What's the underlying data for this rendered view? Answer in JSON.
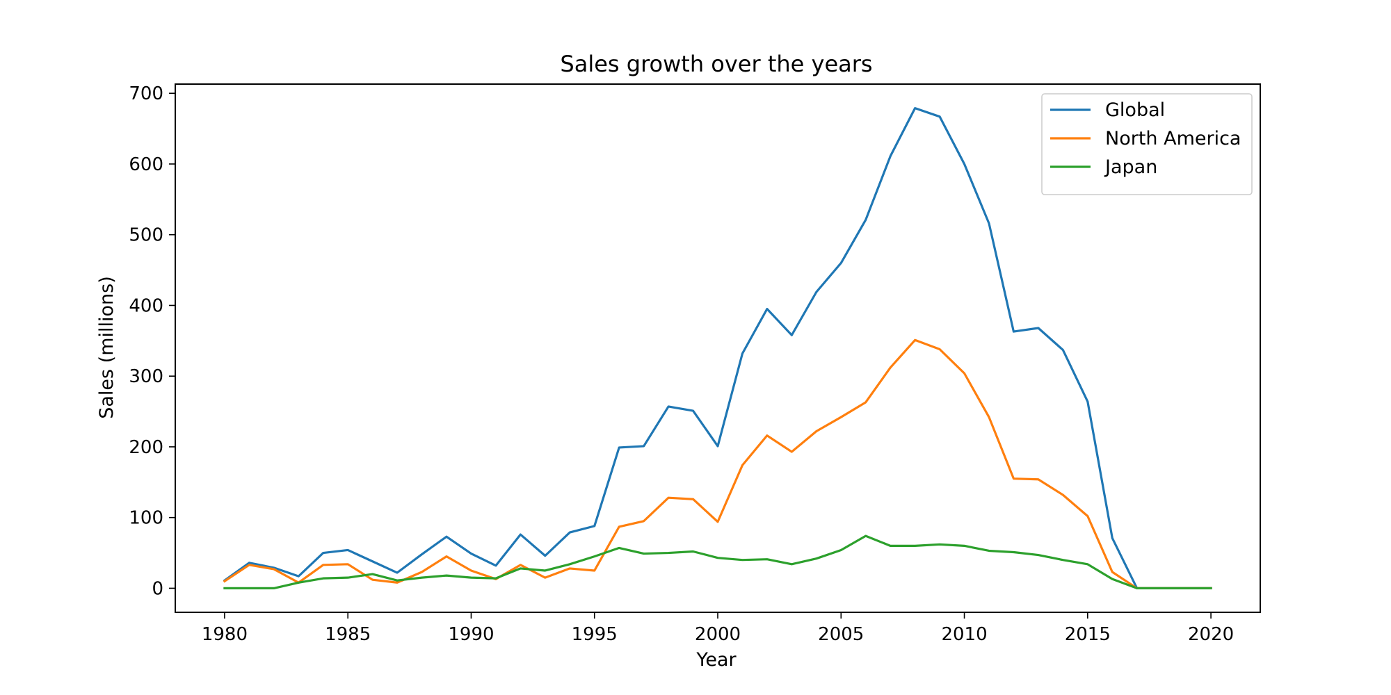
{
  "chart_data": {
    "type": "line",
    "title": "Sales growth over the years",
    "xlabel": "Year",
    "ylabel": "Sales (millions)",
    "xlim": [
      1978,
      2022
    ],
    "ylim": [
      -34,
      713
    ],
    "xticks": [
      1980,
      1985,
      1990,
      1995,
      2000,
      2005,
      2010,
      2015,
      2020
    ],
    "yticks": [
      0,
      100,
      200,
      300,
      400,
      500,
      600,
      700
    ],
    "grid": false,
    "legend_position": "top-right",
    "x": [
      1980,
      1981,
      1982,
      1983,
      1984,
      1985,
      1986,
      1987,
      1988,
      1989,
      1990,
      1991,
      1992,
      1993,
      1994,
      1995,
      1996,
      1997,
      1998,
      1999,
      2000,
      2001,
      2002,
      2003,
      2004,
      2005,
      2006,
      2007,
      2008,
      2009,
      2010,
      2011,
      2012,
      2013,
      2014,
      2015,
      2016,
      2017,
      2018,
      2019,
      2020
    ],
    "series": [
      {
        "name": "Global",
        "color": "#1f77b4",
        "values": [
          11,
          36,
          29,
          17,
          50,
          54,
          38,
          22,
          48,
          73,
          49,
          32,
          76,
          46,
          79,
          88,
          199,
          201,
          257,
          251,
          201,
          332,
          395,
          358,
          419,
          460,
          521,
          611,
          679,
          667,
          600,
          516,
          363,
          368,
          337,
          264,
          71,
          0,
          0,
          0,
          0
        ]
      },
      {
        "name": "North America",
        "color": "#ff7f0e",
        "values": [
          10,
          33,
          27,
          8,
          33,
          34,
          12,
          8,
          23,
          45,
          25,
          13,
          33,
          15,
          28,
          25,
          87,
          95,
          128,
          126,
          94,
          174,
          216,
          193,
          222,
          242,
          263,
          312,
          351,
          338,
          304,
          242,
          155,
          154,
          132,
          102,
          23,
          0,
          0,
          0,
          0
        ]
      },
      {
        "name": "Japan",
        "color": "#2ca02c",
        "values": [
          0,
          0,
          0,
          8,
          14,
          15,
          20,
          11,
          15,
          18,
          15,
          14,
          28,
          25,
          34,
          45,
          57,
          49,
          50,
          52,
          43,
          40,
          41,
          34,
          42,
          54,
          74,
          60,
          60,
          62,
          60,
          53,
          51,
          47,
          40,
          34,
          13,
          0,
          0,
          0,
          0
        ]
      }
    ]
  }
}
